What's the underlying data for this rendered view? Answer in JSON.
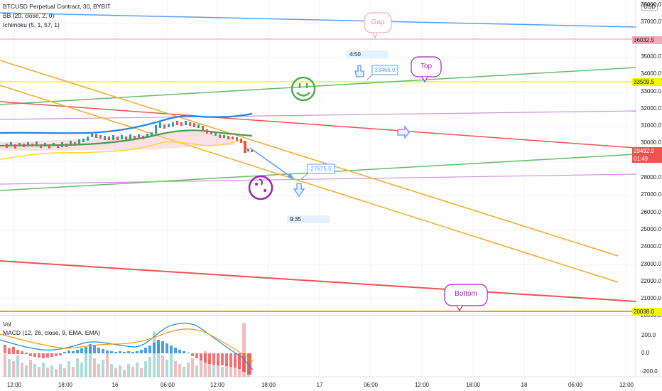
{
  "legend": {
    "symbol": "BTCUSD Perpetual Contract, 30, BYBIT",
    "bb": "BB (20, close, 2, 0)",
    "ichimoku": "Ichimoku (5, 1, 57, 1)",
    "vol": "Vol",
    "macd": "MACD (12, 26, close, 9, EMA, EMA)"
  },
  "currency_badge": "USD",
  "price_axis": [
    "38000.0",
    "37000.0",
    "36000.0",
    "35000.0",
    "34000.0",
    "33000.0",
    "32000.0",
    "31000.0",
    "30000.0",
    "29000.0",
    "28000.0",
    "27000.0",
    "26000.0",
    "25000.0",
    "24000.0",
    "23000.0",
    "22000.0",
    "21000.0",
    "20000.0"
  ],
  "macd_axis": [
    "200.0",
    "0.0",
    "-200.0"
  ],
  "time_axis": [
    "12:00",
    "18:00",
    "16",
    "06:00",
    "12:00",
    "18:00",
    "17",
    "06:00",
    "12:00",
    "18:00",
    "18",
    "06:00",
    "12:00"
  ],
  "price_tags": {
    "gap": "36032.5",
    "top": "33509.5",
    "current": "29492.0",
    "countdown": "01:49",
    "bottom": "20038.0"
  },
  "annotations": {
    "gap": "Gap",
    "top": "Top",
    "bottom": "Bottom",
    "target_up": "33466.0",
    "target_down": "27675.5",
    "time_up": "4:50",
    "time_down": "9:35"
  },
  "colors": {
    "blue_line": "#5b9cf6",
    "gap_line": "#f7a8b8",
    "top_line": "#f5f50a",
    "green_line": "#66bb6a",
    "red_line": "#ef5350",
    "violet_line": "#ce93d8",
    "orange_line": "#f9a825",
    "bottom_line": "#ff9800",
    "candle_up": "#26a69a",
    "candle_down": "#ef5350"
  }
}
